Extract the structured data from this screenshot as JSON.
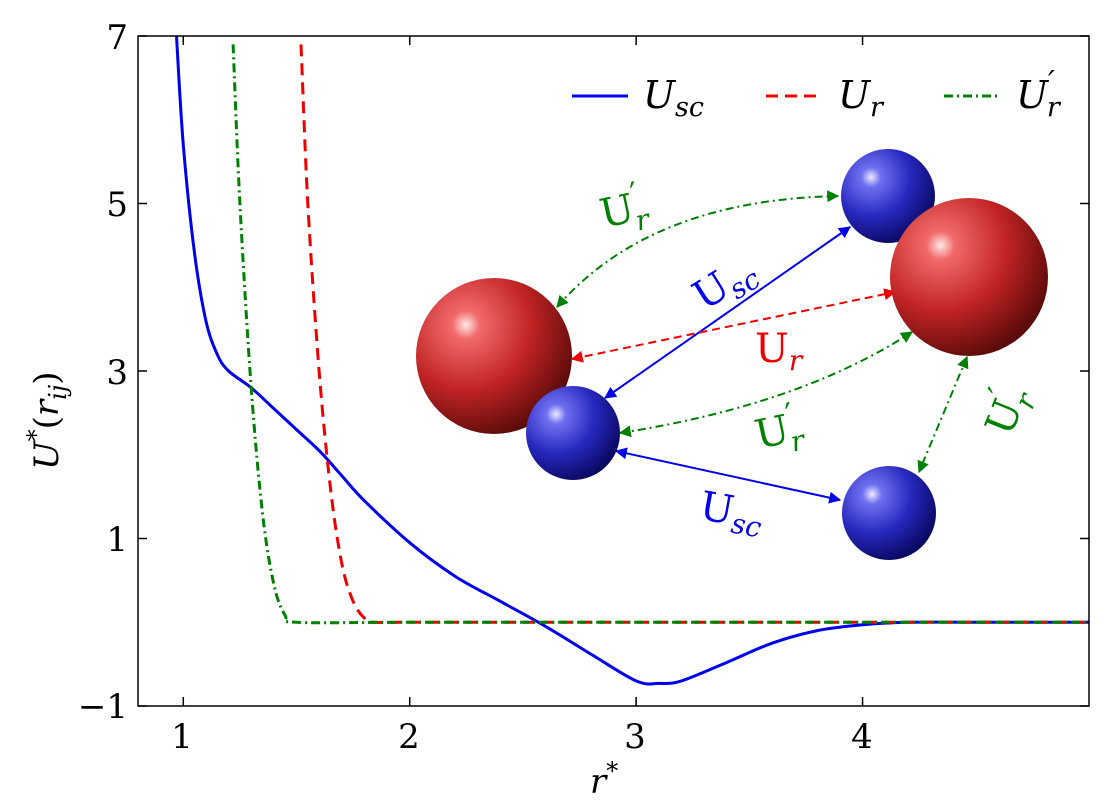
{
  "chart_data": {
    "type": "line",
    "xlabel": "r*",
    "ylabel": "U*(r_ij)",
    "xlim": [
      0.8,
      5.0
    ],
    "ylim": [
      -1,
      7
    ],
    "xticks": [
      1,
      2,
      3,
      4
    ],
    "yticks": [
      -1,
      1,
      3,
      5,
      7
    ],
    "legend_position": "top-right",
    "series": [
      {
        "name": "U_sc",
        "color": "#0000ee",
        "style": "solid",
        "x": [
          0.97,
          1.0,
          1.05,
          1.1,
          1.15,
          1.2,
          1.3,
          1.4,
          1.5,
          1.6,
          1.7,
          1.8,
          2.0,
          2.2,
          2.4,
          2.6,
          2.8,
          3.0,
          3.1,
          3.2,
          3.4,
          3.6,
          3.8,
          4.0,
          4.2,
          4.5,
          5.0
        ],
        "y": [
          7.0,
          5.7,
          4.4,
          3.6,
          3.2,
          3.0,
          2.8,
          2.55,
          2.3,
          2.05,
          1.75,
          1.45,
          0.95,
          0.55,
          0.25,
          -0.05,
          -0.38,
          -0.7,
          -0.73,
          -0.7,
          -0.48,
          -0.25,
          -0.1,
          -0.03,
          0.0,
          0.0,
          0.0
        ]
      },
      {
        "name": "U_r",
        "color": "#ee0000",
        "style": "dashed",
        "x": [
          1.52,
          1.55,
          1.6,
          1.65,
          1.7,
          1.75,
          1.8,
          1.85,
          2.0,
          3.0,
          4.0,
          5.0
        ],
        "y": [
          6.9,
          5.0,
          3.0,
          1.6,
          0.7,
          0.25,
          0.05,
          0.0,
          0.0,
          0.0,
          0.0,
          0.0
        ],
        "prefer_equation": "r6"
      },
      {
        "name": "U'_r",
        "color": "#008000",
        "style": "dashdot",
        "x": [
          1.22,
          1.25,
          1.3,
          1.35,
          1.4,
          1.45,
          1.5,
          2.0,
          3.0,
          4.0,
          5.0
        ],
        "y": [
          6.9,
          5.0,
          2.8,
          1.3,
          0.45,
          0.08,
          0.0,
          0.0,
          0.0,
          0.0,
          0.0
        ]
      }
    ]
  },
  "legend": {
    "usc_main": "U",
    "usc_sub": "sc",
    "ur_main": "U",
    "ur_sub": "r",
    "urp_main": "U",
    "urp_prime": "′",
    "urp_sub": "r"
  },
  "axis": {
    "x_main": "r",
    "x_sup": "*",
    "y_main": "U",
    "y_sup": "*",
    "y_paren_open": "(",
    "y_r": "r",
    "y_sub": "ij",
    "y_paren_close": ")"
  },
  "ticks": {
    "x": [
      "1",
      "2",
      "3",
      "4"
    ],
    "y": [
      "−1",
      "1",
      "3",
      "5",
      "7"
    ]
  },
  "annotations": {
    "usc_top_main": "U",
    "usc_top_sub": "sc",
    "usc_bottom_main": "U",
    "usc_bottom_sub": "sc",
    "ur_main": "U",
    "ur_sub": "r",
    "urp_top_main": "U",
    "urp_top_prime": "′",
    "urp_top_sub": "r",
    "urp_mid_main": "U",
    "urp_mid_prime": "′",
    "urp_mid_sub": "r",
    "urp_right_main": "U",
    "urp_right_prime": "′",
    "urp_right_sub": "r",
    "colors": {
      "blue": "#0000ee",
      "red": "#ee0000",
      "green": "#008000"
    }
  }
}
